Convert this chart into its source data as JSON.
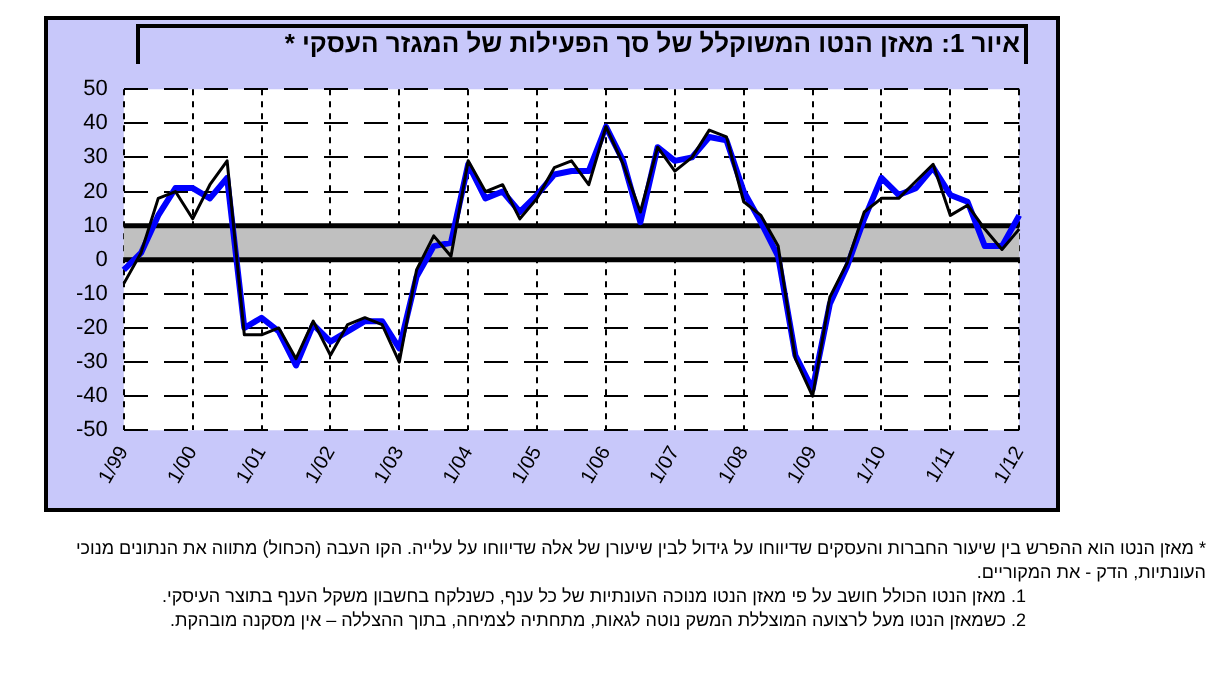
{
  "chart_data": {
    "type": "line",
    "title": "איור 1: מאזן הנטו המשוקלל של סך הפעילות של המגזר העסקי *",
    "categories": [
      "1/99",
      null,
      null,
      null,
      "1/00",
      null,
      null,
      null,
      "1/01",
      null,
      null,
      null,
      "1/02",
      null,
      null,
      null,
      "1/03",
      null,
      null,
      null,
      "1/04",
      null,
      null,
      null,
      "1/05",
      null,
      null,
      null,
      "1/06",
      null,
      null,
      null,
      "1/07",
      null,
      null,
      null,
      "1/08",
      null,
      null,
      null,
      "1/09",
      null,
      null,
      null,
      "1/10",
      null,
      null,
      null,
      "1/11",
      null,
      null,
      null,
      "1/12"
    ],
    "series": [
      {
        "color": "#000000",
        "values": [
          -7,
          2,
          18,
          20,
          12,
          22,
          29,
          -22,
          -22,
          -20,
          -29,
          -18,
          -28,
          -19,
          -17,
          -19,
          -30,
          -3,
          7,
          1,
          29,
          20,
          22,
          12,
          18,
          27,
          29,
          22,
          39,
          28,
          14,
          33,
          26,
          30,
          38,
          36,
          17,
          13,
          4,
          -29,
          -40,
          -11,
          -1,
          14,
          18,
          18,
          23,
          28,
          13,
          16,
          9,
          3,
          9
        ]
      },
      {
        "color": "#0000ff",
        "values": [
          -3,
          2,
          13,
          21,
          21,
          18,
          24,
          -20,
          -17,
          -21,
          -31,
          -19,
          -24,
          -21,
          -18,
          -18,
          -26,
          -5,
          4,
          5,
          28,
          18,
          20,
          14,
          19,
          25,
          26,
          26,
          39,
          29,
          11,
          33,
          29,
          30,
          36,
          35,
          20,
          11,
          1,
          -28,
          -38,
          -13,
          -2,
          12,
          24,
          19,
          21,
          27,
          19,
          17,
          4,
          4,
          13
        ]
      }
    ],
    "ylim": [
      -50,
      50
    ],
    "yticks": [
      -50,
      -40,
      -30,
      -20,
      -10,
      0,
      10,
      20,
      30,
      40,
      50
    ],
    "bands": [
      {
        "axis": "y",
        "from": 0,
        "to": 10,
        "color": "#c0c0c0"
      }
    ],
    "grid": true,
    "legend": false,
    "marker": "none",
    "line_style": "solid",
    "annotations": [
      "* מאזן הנטו הוא ההפרש בין שיעור החברות והעסקים שדיווחו על גידול לבין שיעורן של אלה שדיווחו על עלייה. הקו העבה (הכחול) מתווה את הנתונים מנוכי העונתיות, הדק - את המקוריים.",
      "1. מאזן הנטו הכולל חושב על פי מאזן הנטו מנוכה העונתיות של כל ענף, כשנלקח בחשבון משקל הענף בתוצר העיסקי.",
      "2. כשמאזן הנטו מעל לרצועה המוצללת המשק נוטה לגאות, מתחתיה לצמיחה, בתוך ההצללה – אין מסקנה מובהקת."
    ]
  }
}
